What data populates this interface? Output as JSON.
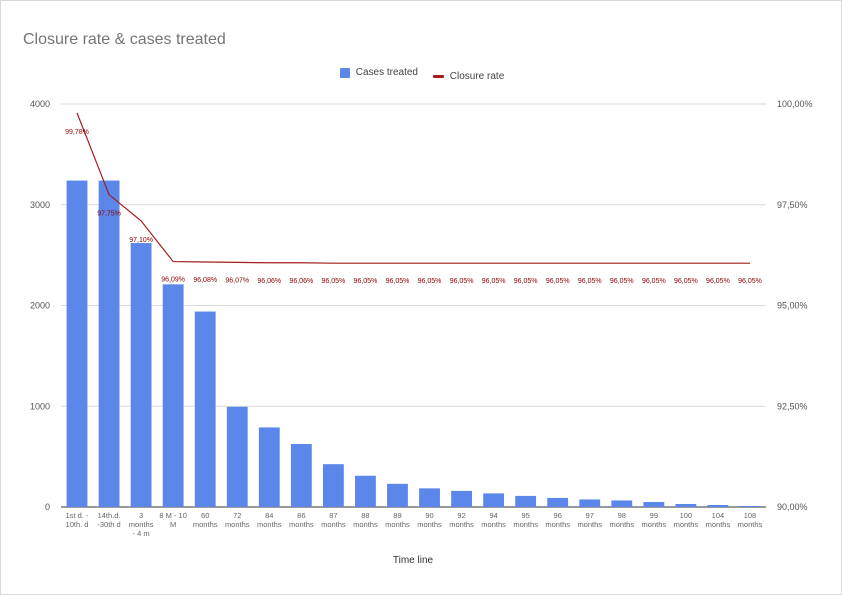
{
  "chart_data": {
    "type": "bar",
    "title": "Closure rate & cases treated",
    "xlabel": "Time line",
    "ylabel": "",
    "y2label": "",
    "ylim": [
      0,
      4000
    ],
    "y2lim": [
      90,
      100
    ],
    "yticks": [
      "0",
      "1000",
      "2000",
      "3000",
      "4000"
    ],
    "y2ticks": [
      "90,00%",
      "92,50%",
      "95,00%",
      "97,50%",
      "100,00%"
    ],
    "y2tick_values": [
      90,
      92.5,
      95,
      97.5,
      100
    ],
    "grid": true,
    "legend_position": "top",
    "categories": [
      [
        "1st d. -",
        "10th. d"
      ],
      [
        "14th.d.",
        "-30th d"
      ],
      [
        "3",
        "months",
        "- 4 m"
      ],
      [
        "8 M - 10",
        "M"
      ],
      [
        "60",
        "months"
      ],
      [
        "72",
        "months"
      ],
      [
        "84",
        "months"
      ],
      [
        "86",
        "months"
      ],
      [
        "87",
        "months"
      ],
      [
        "88",
        "months"
      ],
      [
        "89",
        "months"
      ],
      [
        "90",
        "months"
      ],
      [
        "92",
        "months"
      ],
      [
        "94",
        "months"
      ],
      [
        "95",
        "months"
      ],
      [
        "96",
        "months"
      ],
      [
        "97",
        "months"
      ],
      [
        "98",
        "months"
      ],
      [
        "99",
        "months"
      ],
      [
        "100",
        "months"
      ],
      [
        "104",
        "months"
      ],
      [
        "108",
        "months"
      ]
    ],
    "series": [
      {
        "name": "Cases treated",
        "type": "bar",
        "axis": "left",
        "color": "#5b87ea",
        "values": [
          3240,
          3240,
          2620,
          2210,
          1940,
          995,
          790,
          625,
          425,
          310,
          230,
          185,
          160,
          135,
          110,
          90,
          75,
          65,
          50,
          30,
          20,
          10
        ]
      },
      {
        "name": "Closure rate",
        "type": "line",
        "axis": "right",
        "color": "#a51c1c",
        "values": [
          99.78,
          97.75,
          97.1,
          96.09,
          96.08,
          96.07,
          96.06,
          96.06,
          96.05,
          96.05,
          96.05,
          96.05,
          96.05,
          96.05,
          96.05,
          96.05,
          96.05,
          96.05,
          96.05,
          96.05,
          96.05,
          96.05
        ],
        "labels": [
          "99,78%",
          "97,75%",
          "97,10%",
          "96,09%",
          "96,08%",
          "96,07%",
          "96,06%",
          "96,06%",
          "96,05%",
          "96,05%",
          "96,05%",
          "96,05%",
          "96,05%",
          "96,05%",
          "96,05%",
          "96,05%",
          "96,05%",
          "96,05%",
          "96,05%",
          "96,05%",
          "96,05%",
          "96,05%"
        ]
      }
    ]
  },
  "colors": {
    "bar": "#5b87ea",
    "line": "#a51c1c",
    "grid": "#dcdcdc",
    "label": "#8b0000"
  }
}
